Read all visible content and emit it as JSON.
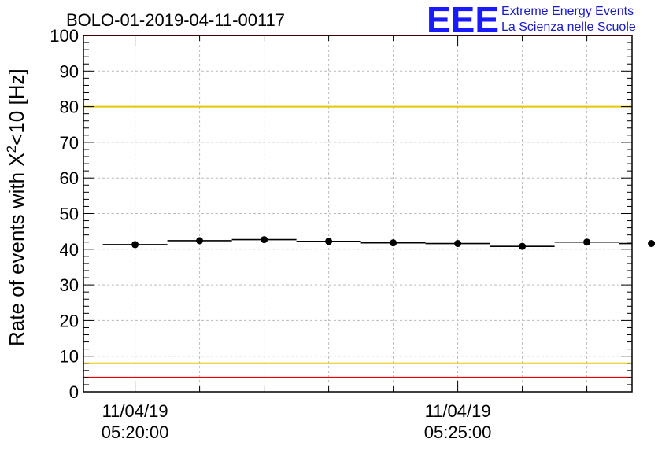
{
  "chart_data": {
    "type": "scatter",
    "title": "BOLO-01-2019-04-11-00117",
    "ylabel_prefix": "Rate of events with ",
    "ylabel_chi": "X",
    "ylabel_sup": "2",
    "ylabel_suffix": "<10 [Hz]",
    "xlabel": "",
    "ylim": [
      0,
      100
    ],
    "yticks": [
      0,
      10,
      20,
      30,
      40,
      50,
      60,
      70,
      80,
      90,
      100
    ],
    "x_unit": "minutes",
    "xlim": [
      -0.8,
      7.7
    ],
    "xtick_labels": [
      {
        "x": 0,
        "date": "11/04/19",
        "time": "05:20:00"
      },
      {
        "x": 5,
        "date": "11/04/19",
        "time": "05:25:00"
      }
    ],
    "points": [
      {
        "x": 0.0,
        "y": 41.3
      },
      {
        "x": 1.0,
        "y": 42.4
      },
      {
        "x": 2.0,
        "y": 42.7
      },
      {
        "x": 3.0,
        "y": 42.2
      },
      {
        "x": 4.0,
        "y": 41.8
      },
      {
        "x": 5.0,
        "y": 41.6
      },
      {
        "x": 6.0,
        "y": 40.8
      },
      {
        "x": 7.0,
        "y": 42.0
      },
      {
        "x": 8.0,
        "y": 41.6
      }
    ],
    "bin_width": 1,
    "reference_lines": [
      {
        "y": 4,
        "color": "#ee0000"
      },
      {
        "y": 8,
        "color": "#e6c800"
      },
      {
        "y": 80,
        "color": "#e6c800"
      },
      {
        "y": 100,
        "color": "#ee0000"
      }
    ],
    "grid": true
  },
  "logo": {
    "letters": "EEE",
    "line1": "Extreme Energy Events",
    "line2": "La Scienza nelle Scuole",
    "color": "#1a1aff"
  }
}
